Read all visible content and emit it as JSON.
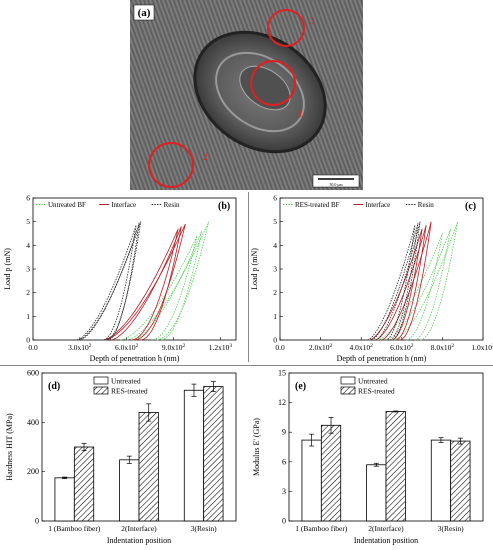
{
  "micrograph": {
    "panel_label": "(a)",
    "labels": [
      "1",
      "2",
      "3"
    ],
    "scale_bar": "50.0 μm"
  },
  "colors": {
    "untreated_bf": "#55cc55",
    "res_bf": "#55cc55",
    "interface": "#b02028",
    "resin": "#222222",
    "marker_circle": "#e02020"
  },
  "chart_data": [
    {
      "id": "b",
      "type": "line",
      "panel_label": "(b)",
      "xlabel": "Depth of penetration h (nm)",
      "ylabel": "Load p (mN)",
      "xlim": [
        0,
        1300
      ],
      "ylim": [
        0,
        6
      ],
      "xticks": [
        0,
        300,
        600,
        900,
        1200
      ],
      "xtick_labels": [
        "0.0",
        "3.0x10²",
        "6.0x10²",
        "9.0x10²",
        "1.2x10³"
      ],
      "yticks": [
        0,
        1,
        2,
        3,
        4,
        5,
        6
      ],
      "series": [
        {
          "name": "Untreated BF",
          "style": "dotted-light",
          "curves": [
            {
              "start": 600,
              "peak": 1125,
              "end": 790,
              "pmax": 5.0
            },
            {
              "start": 640,
              "peak": 1080,
              "end": 820,
              "pmax": 4.6
            },
            {
              "start": 560,
              "peak": 1050,
              "end": 760,
              "pmax": 4.4
            }
          ]
        },
        {
          "name": "Interface",
          "style": "solid",
          "curves": [
            {
              "start": 460,
              "peak": 975,
              "end": 650,
              "pmax": 4.9
            },
            {
              "start": 500,
              "peak": 950,
              "end": 690,
              "pmax": 4.8
            },
            {
              "start": 450,
              "peak": 930,
              "end": 630,
              "pmax": 4.7
            }
          ]
        },
        {
          "name": "Resin",
          "style": "dotted",
          "curves": [
            {
              "start": 290,
              "peak": 690,
              "end": 470,
              "pmax": 5.0
            },
            {
              "start": 300,
              "peak": 680,
              "end": 480,
              "pmax": 4.95
            },
            {
              "start": 280,
              "peak": 660,
              "end": 450,
              "pmax": 4.85
            }
          ]
        }
      ]
    },
    {
      "id": "c",
      "type": "line",
      "panel_label": "(c)",
      "xlabel": "Depth of penetration h (nm)",
      "ylabel": "Load p (mN)",
      "xlim": [
        0,
        1000
      ],
      "ylim": [
        0,
        6
      ],
      "xticks": [
        0,
        200,
        400,
        600,
        800,
        1000
      ],
      "xtick_labels": [
        "0.0",
        "2.0x10²",
        "4.0x10²",
        "6.0x10²",
        "8.0x10²",
        "1.0x10³"
      ],
      "yticks": [
        0,
        1,
        2,
        3,
        4,
        5,
        6
      ],
      "series": [
        {
          "name": "RES-treated BF",
          "style": "dotted-light",
          "curves": [
            {
              "start": 560,
              "peak": 875,
              "end": 690,
              "pmax": 5.0
            },
            {
              "start": 520,
              "peak": 840,
              "end": 660,
              "pmax": 4.7
            },
            {
              "start": 480,
              "peak": 800,
              "end": 620,
              "pmax": 4.5
            }
          ]
        },
        {
          "name": "Interface",
          "style": "solid",
          "curves": [
            {
              "start": 500,
              "peak": 745,
              "end": 590,
              "pmax": 5.0
            },
            {
              "start": 470,
              "peak": 720,
              "end": 570,
              "pmax": 4.85
            },
            {
              "start": 440,
              "peak": 700,
              "end": 550,
              "pmax": 4.7
            }
          ]
        },
        {
          "name": "Resin",
          "style": "dotted",
          "curves": [
            {
              "start": 470,
              "peak": 690,
              "end": 550,
              "pmax": 5.0
            },
            {
              "start": 450,
              "peak": 680,
              "end": 540,
              "pmax": 4.95
            },
            {
              "start": 430,
              "peak": 665,
              "end": 520,
              "pmax": 4.85
            }
          ]
        }
      ]
    },
    {
      "id": "d",
      "type": "bar",
      "panel_label": "(d)",
      "categories": [
        "1 (Bamboo fiber)",
        "2(Interface)",
        "3(Resin)"
      ],
      "series": [
        {
          "name": "Untreated",
          "values": [
            175,
            248,
            530
          ],
          "errors": [
            3,
            15,
            25
          ]
        },
        {
          "name": "RES-treated",
          "values": [
            300,
            440,
            545
          ],
          "errors": [
            15,
            35,
            20
          ]
        }
      ],
      "xlabel": "Indentation position",
      "ylabel": "Hardness HIT (MPa)",
      "ylim": [
        0,
        600
      ],
      "yticks": [
        0,
        200,
        400,
        600
      ],
      "legend": "top-left"
    },
    {
      "id": "e",
      "type": "bar",
      "panel_label": "(e)",
      "categories": [
        "1 (Bamboo fiber)",
        "2(Interface)",
        "3(Resin)"
      ],
      "series": [
        {
          "name": "Untreated",
          "values": [
            8.2,
            5.7,
            8.2
          ],
          "errors": [
            0.6,
            0.15,
            0.25
          ]
        },
        {
          "name": "RES-treated",
          "values": [
            9.7,
            11.1,
            8.1
          ],
          "errors": [
            0.8,
            0.05,
            0.3
          ]
        }
      ],
      "xlabel": "Indentation position",
      "ylabel": "Modulus E' (GPa)",
      "ylim": [
        0,
        15
      ],
      "yticks": [
        0,
        3,
        6,
        9,
        12,
        15
      ],
      "legend": "top-left"
    }
  ]
}
